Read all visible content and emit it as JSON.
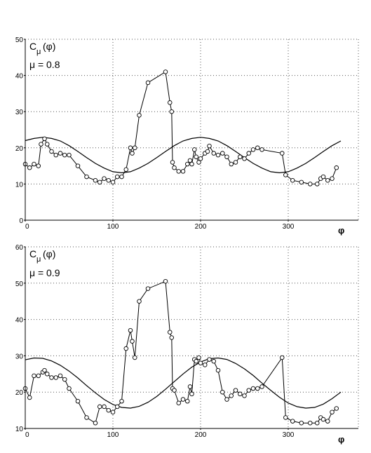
{
  "chart_data": [
    {
      "type": "line",
      "title_lines": [
        "C",
        "μ",
        "(φ)"
      ],
      "param_label": "μ = 0.8",
      "xlabel": "φ",
      "xlim": [
        0,
        380
      ],
      "ylim": [
        0,
        50
      ],
      "xticks": [
        0,
        100,
        200,
        300
      ],
      "yticks": [
        0,
        10,
        20,
        30,
        40,
        50
      ],
      "grid": true,
      "series": [
        {
          "style": "line-with-open-circles",
          "x": [
            0,
            5,
            10,
            15,
            18,
            22,
            25,
            30,
            35,
            40,
            45,
            50,
            60,
            70,
            80,
            85,
            90,
            95,
            100,
            105,
            110,
            115,
            120,
            122,
            125,
            130,
            140,
            160,
            165,
            167,
            168,
            170,
            175,
            180,
            185,
            188,
            190,
            193,
            195,
            198,
            200,
            205,
            208,
            210,
            215,
            220,
            225,
            230,
            235,
            240,
            245,
            250,
            255,
            260,
            265,
            270,
            293,
            297,
            305,
            315,
            325,
            333,
            337,
            340,
            345,
            350,
            355
          ],
          "y": [
            15.5,
            14.5,
            15.5,
            15,
            21,
            22.5,
            21,
            19,
            18,
            18.5,
            18,
            18,
            15,
            12,
            11,
            10.5,
            11.5,
            11,
            10.5,
            12,
            12,
            14,
            20,
            18.5,
            20,
            29,
            38,
            41,
            32.5,
            30,
            16,
            14.5,
            13.5,
            13.5,
            15.5,
            16.5,
            15.5,
            19.5,
            17.5,
            16,
            17,
            18.5,
            19,
            20.5,
            18.5,
            18,
            18.5,
            17.5,
            15.5,
            16,
            17.5,
            17,
            18.5,
            19.5,
            20,
            19.5,
            18.5,
            12.5,
            11,
            10.5,
            10,
            10,
            11.5,
            12,
            11,
            11.5,
            14.5
          ]
        },
        {
          "style": "smooth-line",
          "x": [
            0,
            10,
            20,
            30,
            40,
            50,
            60,
            70,
            80,
            90,
            100,
            110,
            120,
            130,
            140,
            150,
            160,
            170,
            180,
            190,
            200,
            210,
            220,
            230,
            240,
            250,
            260,
            270,
            280,
            290,
            300,
            310,
            320,
            330,
            340,
            350,
            360
          ],
          "y": [
            22,
            22.6,
            22.9,
            22.6,
            21.9,
            20.6,
            19,
            17.3,
            15.7,
            14.4,
            13.4,
            13.1,
            13.4,
            14.4,
            15.7,
            17.3,
            19,
            20.6,
            21.9,
            22.6,
            22.9,
            22.6,
            21.9,
            20.6,
            19,
            17.3,
            15.7,
            14.4,
            13.4,
            13.1,
            13.4,
            14.4,
            15.7,
            17.3,
            19,
            20.6,
            21.9
          ]
        }
      ]
    },
    {
      "type": "line",
      "title_lines": [
        "C",
        "μ",
        "(φ)"
      ],
      "param_label": "μ = 0.9",
      "xlabel": "φ",
      "xlim": [
        0,
        380
      ],
      "ylim": [
        10,
        60
      ],
      "xticks": [
        0,
        100,
        200,
        300
      ],
      "yticks": [
        10,
        20,
        30,
        40,
        50,
        60
      ],
      "grid": true,
      "series": [
        {
          "style": "line-with-open-circles",
          "x": [
            0,
            5,
            10,
            15,
            20,
            22,
            25,
            30,
            35,
            40,
            45,
            50,
            60,
            70,
            80,
            85,
            90,
            95,
            100,
            105,
            110,
            115,
            120,
            122,
            125,
            130,
            140,
            160,
            165,
            167,
            168,
            170,
            175,
            180,
            185,
            188,
            190,
            193,
            195,
            198,
            200,
            205,
            210,
            215,
            220,
            225,
            230,
            235,
            240,
            245,
            250,
            255,
            260,
            265,
            270,
            293,
            297,
            305,
            315,
            325,
            333,
            337,
            340,
            345,
            350,
            355
          ],
          "y": [
            21,
            18.5,
            24.5,
            24.5,
            25.5,
            26,
            25,
            24,
            24,
            24.5,
            23.5,
            21,
            17.5,
            13,
            11.5,
            16,
            16,
            15,
            14.5,
            16,
            17.5,
            32,
            37,
            34,
            29.5,
            45,
            48.5,
            50.5,
            36.5,
            35,
            21,
            20.5,
            17,
            18,
            17.5,
            21.5,
            19.5,
            29,
            28.5,
            29.5,
            28,
            27.5,
            29,
            28.5,
            26,
            20,
            18,
            19,
            20.5,
            19.5,
            19,
            20.5,
            21,
            21,
            21.5,
            29.5,
            13,
            12,
            11.5,
            11.5,
            11.5,
            13,
            12.5,
            12,
            14.5,
            15.5
          ]
        },
        {
          "style": "smooth-line",
          "x": [
            0,
            10,
            20,
            30,
            40,
            50,
            60,
            70,
            80,
            90,
            100,
            110,
            120,
            130,
            140,
            150,
            160,
            170,
            180,
            190,
            200,
            210,
            220,
            230,
            240,
            250,
            260,
            270,
            280,
            290,
            300,
            310,
            320,
            330,
            340,
            350,
            360
          ],
          "y": [
            28.9,
            29.4,
            29.3,
            28.6,
            27.4,
            25.8,
            23.9,
            21.8,
            19.8,
            18,
            16.6,
            15.8,
            15.6,
            16.1,
            17.2,
            18.8,
            20.8,
            22.9,
            25,
            26.9,
            28.3,
            29.2,
            29.4,
            29,
            27.9,
            26.4,
            24.6,
            22.5,
            20.5,
            18.6,
            17,
            16,
            15.6,
            15.8,
            16.7,
            18.2,
            20
          ]
        }
      ]
    }
  ]
}
